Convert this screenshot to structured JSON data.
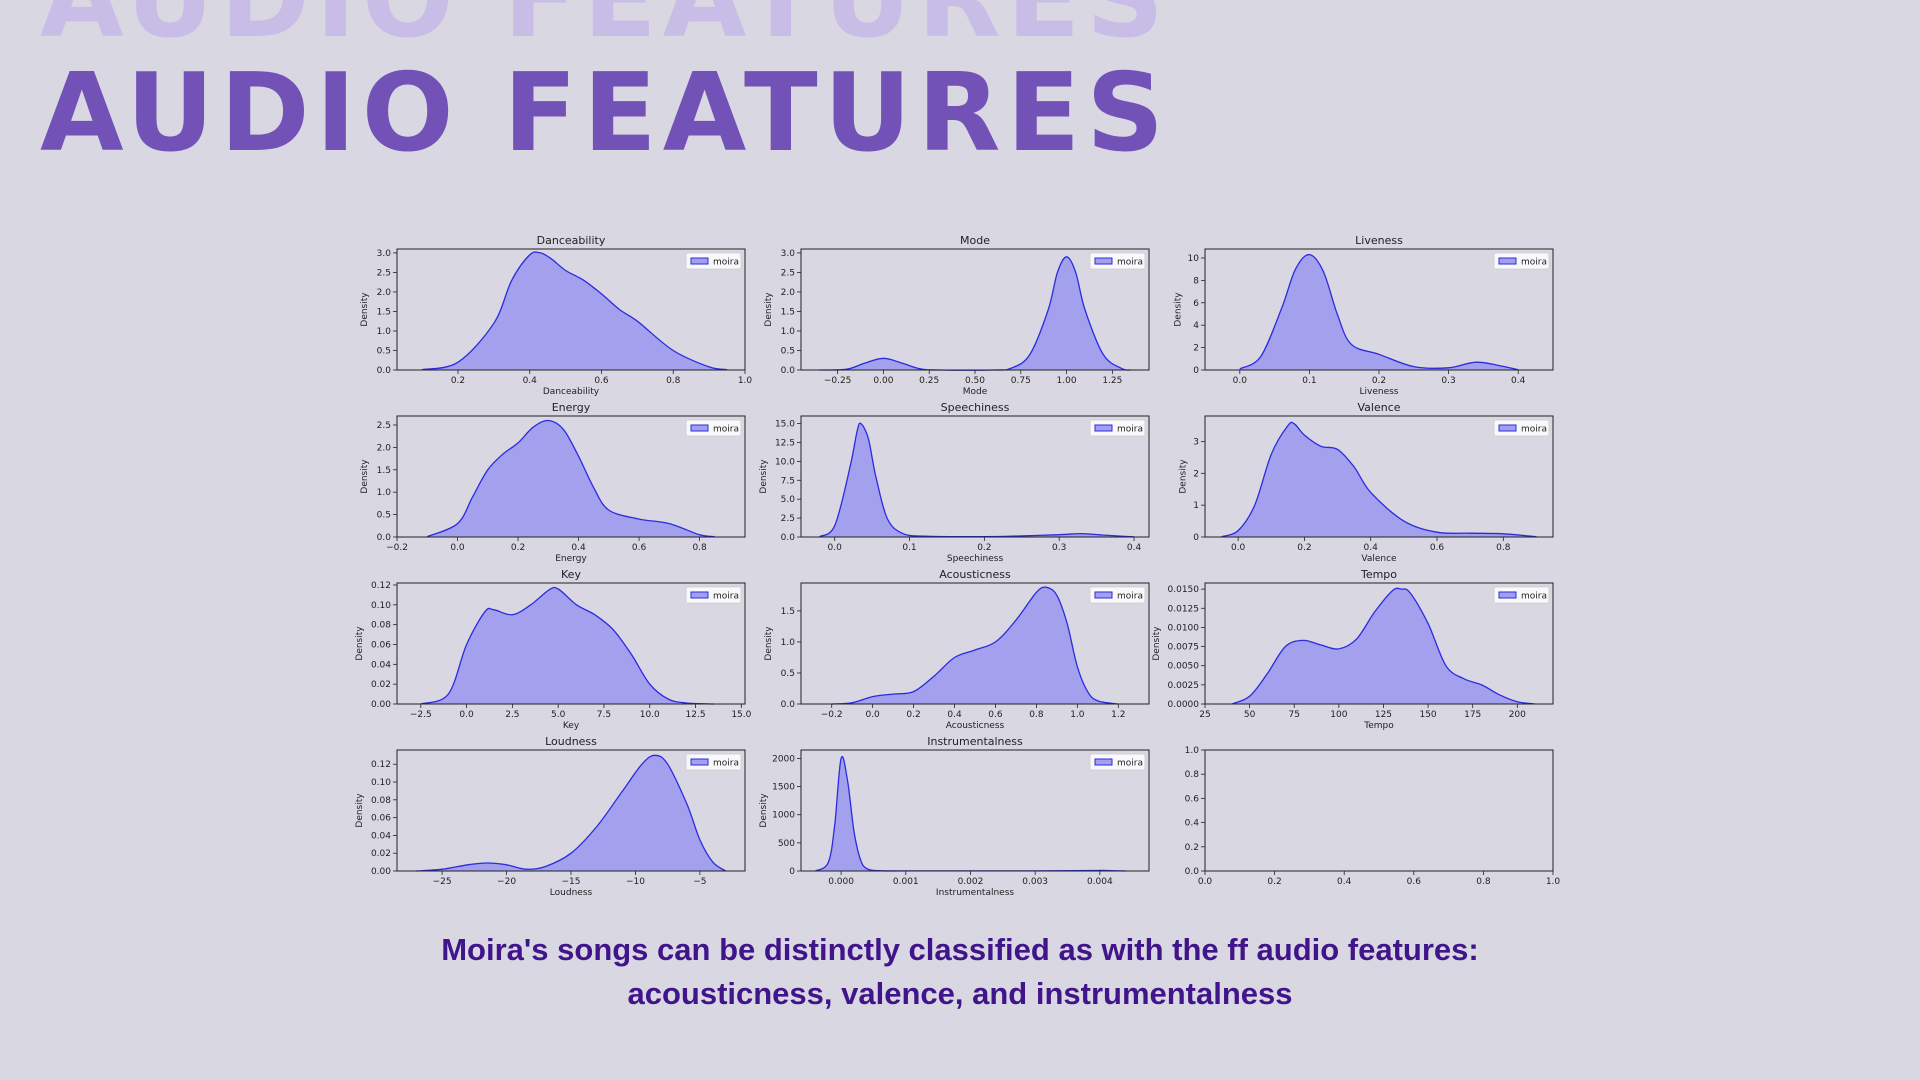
{
  "slide": {
    "title_ghost": "AUDIO FEATURES",
    "title": "AUDIO FEATURES",
    "caption_line1": "Moira's songs can be distinctly classified as with the ff audio features:",
    "caption_line2": "acousticness, valence, and instrumentalness",
    "colors": {
      "background": "#d8d7e2",
      "title": "#7352b8",
      "title_ghost": "#c8bde6",
      "caption": "#40148a",
      "line": "#2b2be0",
      "fill": "#a3a0ee"
    }
  },
  "chart_data": [
    {
      "type": "area",
      "title": "Danceability",
      "xlabel": "Danceability",
      "ylabel": "Density",
      "legend": [
        "moira"
      ],
      "xlim": [
        0.03,
        1.0
      ],
      "ylim": [
        0,
        3.1
      ],
      "xticks": [
        {
          "v": 0.2,
          "l": "0.2"
        },
        {
          "v": 0.4,
          "l": "0.4"
        },
        {
          "v": 0.6,
          "l": "0.6"
        },
        {
          "v": 0.8,
          "l": "0.8"
        },
        {
          "v": 1.0,
          "l": "1.0"
        }
      ],
      "yticks": [
        {
          "v": 0,
          "l": "0.0"
        },
        {
          "v": 0.5,
          "l": "0.5"
        },
        {
          "v": 1.0,
          "l": "1.0"
        },
        {
          "v": 1.5,
          "l": "1.5"
        },
        {
          "v": 2.0,
          "l": "2.0"
        },
        {
          "v": 2.5,
          "l": "2.5"
        },
        {
          "v": 3.0,
          "l": "3.0"
        }
      ],
      "x": [
        0.1,
        0.2,
        0.3,
        0.35,
        0.4,
        0.43,
        0.46,
        0.5,
        0.55,
        0.6,
        0.65,
        0.7,
        0.8,
        0.9,
        0.95
      ],
      "y": [
        0.01,
        0.2,
        1.2,
        2.3,
        2.95,
        3.0,
        2.85,
        2.55,
        2.3,
        1.95,
        1.55,
        1.25,
        0.5,
        0.08,
        0.01
      ]
    },
    {
      "type": "area",
      "title": "Mode",
      "xlabel": "Mode",
      "ylabel": "Density",
      "legend": [
        "moira"
      ],
      "xlim": [
        -0.45,
        1.45
      ],
      "ylim": [
        0,
        3.1
      ],
      "xticks": [
        {
          "v": -0.25,
          "l": "−0.25"
        },
        {
          "v": 0,
          "l": "0.00"
        },
        {
          "v": 0.25,
          "l": "0.25"
        },
        {
          "v": 0.5,
          "l": "0.50"
        },
        {
          "v": 0.75,
          "l": "0.75"
        },
        {
          "v": 1.0,
          "l": "1.00"
        },
        {
          "v": 1.25,
          "l": "1.25"
        }
      ],
      "yticks": [
        {
          "v": 0,
          "l": "0.0"
        },
        {
          "v": 0.5,
          "l": "0.5"
        },
        {
          "v": 1.0,
          "l": "1.0"
        },
        {
          "v": 1.5,
          "l": "1.5"
        },
        {
          "v": 2.0,
          "l": "2.0"
        },
        {
          "v": 2.5,
          "l": "2.5"
        },
        {
          "v": 3.0,
          "l": "3.0"
        }
      ],
      "x": [
        -0.35,
        -0.2,
        -0.1,
        0,
        0.1,
        0.2,
        0.3,
        0.6,
        0.7,
        0.8,
        0.9,
        0.95,
        1.0,
        1.05,
        1.1,
        1.2,
        1.3,
        1.35
      ],
      "y": [
        0,
        0.02,
        0.18,
        0.3,
        0.18,
        0.03,
        0,
        0,
        0.05,
        0.4,
        1.55,
        2.5,
        2.9,
        2.5,
        1.55,
        0.4,
        0.04,
        0
      ]
    },
    {
      "type": "area",
      "title": "Liveness",
      "xlabel": "Liveness",
      "ylabel": "Density",
      "legend": [
        "moira"
      ],
      "xlim": [
        -0.05,
        0.45
      ],
      "ylim": [
        0,
        10.8
      ],
      "xticks": [
        {
          "v": 0,
          "l": "0.0"
        },
        {
          "v": 0.1,
          "l": "0.1"
        },
        {
          "v": 0.2,
          "l": "0.2"
        },
        {
          "v": 0.3,
          "l": "0.3"
        },
        {
          "v": 0.4,
          "l": "0.4"
        }
      ],
      "yticks": [
        {
          "v": 0,
          "l": "0"
        },
        {
          "v": 2,
          "l": "2"
        },
        {
          "v": 4,
          "l": "4"
        },
        {
          "v": 6,
          "l": "6"
        },
        {
          "v": 8,
          "l": "8"
        },
        {
          "v": 10,
          "l": "10"
        }
      ],
      "x": [
        0.0,
        0.03,
        0.06,
        0.08,
        0.1,
        0.12,
        0.14,
        0.16,
        0.2,
        0.25,
        0.3,
        0.34,
        0.38,
        0.4
      ],
      "y": [
        0.1,
        1.2,
        5.5,
        9.0,
        10.3,
        8.8,
        5.0,
        2.3,
        1.4,
        0.3,
        0.2,
        0.7,
        0.3,
        0.02
      ]
    },
    {
      "type": "area",
      "title": "Energy",
      "xlabel": "Energy",
      "ylabel": "Density",
      "legend": [
        "moira"
      ],
      "xlim": [
        -0.2,
        0.95
      ],
      "ylim": [
        0,
        2.7
      ],
      "xticks": [
        {
          "v": -0.2,
          "l": "−0.2"
        },
        {
          "v": 0,
          "l": "0.0"
        },
        {
          "v": 0.2,
          "l": "0.2"
        },
        {
          "v": 0.4,
          "l": "0.4"
        },
        {
          "v": 0.6,
          "l": "0.6"
        },
        {
          "v": 0.8,
          "l": "0.8"
        }
      ],
      "yticks": [
        {
          "v": 0,
          "l": "0.0"
        },
        {
          "v": 0.5,
          "l": "0.5"
        },
        {
          "v": 1.0,
          "l": "1.0"
        },
        {
          "v": 1.5,
          "l": "1.5"
        },
        {
          "v": 2.0,
          "l": "2.0"
        },
        {
          "v": 2.5,
          "l": "2.5"
        }
      ],
      "x": [
        -0.1,
        0,
        0.05,
        0.1,
        0.15,
        0.2,
        0.25,
        0.3,
        0.35,
        0.4,
        0.45,
        0.5,
        0.6,
        0.7,
        0.8,
        0.85
      ],
      "y": [
        0.01,
        0.3,
        0.9,
        1.5,
        1.85,
        2.1,
        2.45,
        2.6,
        2.4,
        1.8,
        1.1,
        0.6,
        0.4,
        0.3,
        0.05,
        0.01
      ]
    },
    {
      "type": "area",
      "title": "Speechiness",
      "xlabel": "Speechiness",
      "ylabel": "Density",
      "legend": [
        "moira"
      ],
      "xlim": [
        -0.045,
        0.42
      ],
      "ylim": [
        0,
        16
      ],
      "xticks": [
        {
          "v": 0,
          "l": "0.0"
        },
        {
          "v": 0.1,
          "l": "0.1"
        },
        {
          "v": 0.2,
          "l": "0.2"
        },
        {
          "v": 0.3,
          "l": "0.3"
        },
        {
          "v": 0.4,
          "l": "0.4"
        }
      ],
      "yticks": [
        {
          "v": 0,
          "l": "0.0"
        },
        {
          "v": 2.5,
          "l": "2.5"
        },
        {
          "v": 5,
          "l": "5.0"
        },
        {
          "v": 7.5,
          "l": "7.5"
        },
        {
          "v": 10,
          "l": "10.0"
        },
        {
          "v": 12.5,
          "l": "12.5"
        },
        {
          "v": 15,
          "l": "15.0"
        }
      ],
      "x": [
        -0.02,
        0,
        0.02,
        0.03,
        0.035,
        0.045,
        0.055,
        0.07,
        0.09,
        0.12,
        0.2,
        0.25,
        0.3,
        0.33,
        0.36,
        0.4
      ],
      "y": [
        0.05,
        1.5,
        9.0,
        14.0,
        15.0,
        13.0,
        8.0,
        2.5,
        0.5,
        0.1,
        0.05,
        0.15,
        0.3,
        0.45,
        0.25,
        0.02
      ]
    },
    {
      "type": "area",
      "title": "Valence",
      "xlabel": "Valence",
      "ylabel": "Density",
      "legend": [
        "moira"
      ],
      "xlim": [
        -0.1,
        0.95
      ],
      "ylim": [
        0,
        3.8
      ],
      "xticks": [
        {
          "v": 0,
          "l": "0.0"
        },
        {
          "v": 0.2,
          "l": "0.2"
        },
        {
          "v": 0.4,
          "l": "0.4"
        },
        {
          "v": 0.6,
          "l": "0.6"
        },
        {
          "v": 0.8,
          "l": "0.8"
        }
      ],
      "yticks": [
        {
          "v": 0,
          "l": "0"
        },
        {
          "v": 1,
          "l": "1"
        },
        {
          "v": 2,
          "l": "2"
        },
        {
          "v": 3,
          "l": "3"
        }
      ],
      "x": [
        -0.05,
        0,
        0.05,
        0.1,
        0.15,
        0.17,
        0.2,
        0.25,
        0.3,
        0.35,
        0.4,
        0.5,
        0.6,
        0.7,
        0.8,
        0.9
      ],
      "y": [
        0.01,
        0.2,
        1.0,
        2.6,
        3.5,
        3.55,
        3.2,
        2.85,
        2.75,
        2.2,
        1.4,
        0.5,
        0.15,
        0.12,
        0.1,
        0.01
      ]
    },
    {
      "type": "area",
      "title": "Key",
      "xlabel": "Key",
      "ylabel": "Density",
      "legend": [
        "moira"
      ],
      "xlim": [
        -3.8,
        15.2
      ],
      "ylim": [
        0,
        0.122
      ],
      "xticks": [
        {
          "v": -2.5,
          "l": "−2.5"
        },
        {
          "v": 0,
          "l": "0.0"
        },
        {
          "v": 2.5,
          "l": "2.5"
        },
        {
          "v": 5,
          "l": "5.0"
        },
        {
          "v": 7.5,
          "l": "7.5"
        },
        {
          "v": 10,
          "l": "10.0"
        },
        {
          "v": 12.5,
          "l": "12.5"
        },
        {
          "v": 15,
          "l": "15.0"
        }
      ],
      "yticks": [
        {
          "v": 0,
          "l": "0.00"
        },
        {
          "v": 0.02,
          "l": "0.02"
        },
        {
          "v": 0.04,
          "l": "0.04"
        },
        {
          "v": 0.06,
          "l": "0.06"
        },
        {
          "v": 0.08,
          "l": "0.08"
        },
        {
          "v": 0.1,
          "l": "0.10"
        },
        {
          "v": 0.12,
          "l": "0.12"
        }
      ],
      "x": [
        -2.5,
        -1,
        0,
        1,
        1.5,
        2.5,
        3.5,
        4.5,
        5,
        6,
        7,
        8,
        9,
        10,
        11,
        12,
        13.5
      ],
      "y": [
        0,
        0.01,
        0.06,
        0.093,
        0.095,
        0.09,
        0.1,
        0.115,
        0.116,
        0.1,
        0.09,
        0.075,
        0.05,
        0.02,
        0.005,
        0.001,
        0
      ]
    },
    {
      "type": "area",
      "title": "Acousticness",
      "xlabel": "Acousticness",
      "ylabel": "Density",
      "legend": [
        "moira"
      ],
      "xlim": [
        -0.35,
        1.35
      ],
      "ylim": [
        0,
        1.95
      ],
      "xticks": [
        {
          "v": -0.2,
          "l": "−0.2"
        },
        {
          "v": 0,
          "l": "0.0"
        },
        {
          "v": 0.2,
          "l": "0.2"
        },
        {
          "v": 0.4,
          "l": "0.4"
        },
        {
          "v": 0.6,
          "l": "0.6"
        },
        {
          "v": 0.8,
          "l": "0.8"
        },
        {
          "v": 1.0,
          "l": "1.0"
        },
        {
          "v": 1.2,
          "l": "1.2"
        }
      ],
      "yticks": [
        {
          "v": 0,
          "l": "0.0"
        },
        {
          "v": 0.5,
          "l": "0.5"
        },
        {
          "v": 1.0,
          "l": "1.0"
        },
        {
          "v": 1.5,
          "l": "1.5"
        }
      ],
      "x": [
        -0.2,
        -0.1,
        0,
        0.1,
        0.2,
        0.3,
        0.4,
        0.5,
        0.6,
        0.7,
        0.8,
        0.85,
        0.9,
        0.95,
        1.0,
        1.05,
        1.1,
        1.2
      ],
      "y": [
        0,
        0.02,
        0.12,
        0.16,
        0.2,
        0.45,
        0.75,
        0.87,
        1.0,
        1.35,
        1.8,
        1.88,
        1.75,
        1.3,
        0.6,
        0.2,
        0.05,
        0
      ]
    },
    {
      "type": "area",
      "title": "Tempo",
      "xlabel": "Tempo",
      "ylabel": "Density",
      "legend": [
        "moira"
      ],
      "xlim": [
        25,
        220
      ],
      "ylim": [
        0,
        0.0158
      ],
      "xticks": [
        {
          "v": 25,
          "l": "25"
        },
        {
          "v": 50,
          "l": "50"
        },
        {
          "v": 75,
          "l": "75"
        },
        {
          "v": 100,
          "l": "100"
        },
        {
          "v": 125,
          "l": "125"
        },
        {
          "v": 150,
          "l": "150"
        },
        {
          "v": 175,
          "l": "175"
        },
        {
          "v": 200,
          "l": "200"
        }
      ],
      "yticks": [
        {
          "v": 0,
          "l": "0.0000"
        },
        {
          "v": 0.0025,
          "l": "0.0025"
        },
        {
          "v": 0.005,
          "l": "0.0050"
        },
        {
          "v": 0.0075,
          "l": "0.0075"
        },
        {
          "v": 0.01,
          "l": "0.0100"
        },
        {
          "v": 0.0125,
          "l": "0.0125"
        },
        {
          "v": 0.015,
          "l": "0.0150"
        }
      ],
      "x": [
        40,
        50,
        60,
        70,
        80,
        90,
        100,
        110,
        120,
        130,
        135,
        140,
        150,
        160,
        170,
        180,
        190,
        200,
        210
      ],
      "y": [
        0,
        0.001,
        0.004,
        0.0075,
        0.0083,
        0.0077,
        0.0072,
        0.0085,
        0.012,
        0.0148,
        0.015,
        0.0145,
        0.0105,
        0.005,
        0.0033,
        0.0025,
        0.0012,
        0.0003,
        0
      ]
    },
    {
      "type": "area",
      "title": "Loudness",
      "xlabel": "Loudness",
      "ylabel": "Density",
      "legend": [
        "moira"
      ],
      "xlim": [
        -28.5,
        -1.5
      ],
      "ylim": [
        0,
        0.136
      ],
      "xticks": [
        {
          "v": -25,
          "l": "−25"
        },
        {
          "v": -20,
          "l": "−20"
        },
        {
          "v": -15,
          "l": "−15"
        },
        {
          "v": -10,
          "l": "−10"
        },
        {
          "v": -5,
          "l": "−5"
        }
      ],
      "yticks": [
        {
          "v": 0,
          "l": "0.00"
        },
        {
          "v": 0.02,
          "l": "0.02"
        },
        {
          "v": 0.04,
          "l": "0.04"
        },
        {
          "v": 0.06,
          "l": "0.06"
        },
        {
          "v": 0.08,
          "l": "0.08"
        },
        {
          "v": 0.1,
          "l": "0.10"
        },
        {
          "v": 0.12,
          "l": "0.12"
        }
      ],
      "x": [
        -27,
        -25,
        -23,
        -21.5,
        -20,
        -18.5,
        -17,
        -15,
        -13,
        -11,
        -9.5,
        -8.5,
        -7.5,
        -6,
        -5,
        -4,
        -3
      ],
      "y": [
        0,
        0.002,
        0.007,
        0.009,
        0.007,
        0.002,
        0.005,
        0.02,
        0.05,
        0.09,
        0.12,
        0.13,
        0.12,
        0.075,
        0.035,
        0.01,
        0
      ]
    },
    {
      "type": "area",
      "title": "Instrumentalness",
      "xlabel": "Instrumentalness",
      "ylabel": "Density",
      "legend": [
        "moira"
      ],
      "xlim": [
        -0.00062,
        0.00476
      ],
      "ylim": [
        0,
        2150
      ],
      "xticks": [
        {
          "v": 0,
          "l": "0.000"
        },
        {
          "v": 0.001,
          "l": "0.001"
        },
        {
          "v": 0.002,
          "l": "0.002"
        },
        {
          "v": 0.003,
          "l": "0.003"
        },
        {
          "v": 0.004,
          "l": "0.004"
        }
      ],
      "yticks": [
        {
          "v": 0,
          "l": "0"
        },
        {
          "v": 500,
          "l": "500"
        },
        {
          "v": 1000,
          "l": "1000"
        },
        {
          "v": 1500,
          "l": "1500"
        },
        {
          "v": 2000,
          "l": "2000"
        }
      ],
      "x": [
        -0.0004,
        -0.0002,
        -0.0001,
        0,
        0.0001,
        0.0002,
        0.0003,
        0.0004,
        0.0006,
        0.001,
        0.003,
        0.0039,
        0.004,
        0.0041,
        0.0044
      ],
      "y": [
        0,
        150,
        800,
        2000,
        1600,
        700,
        200,
        40,
        5,
        2,
        2,
        8,
        10,
        8,
        0
      ]
    },
    {
      "type": "area",
      "title": "",
      "xlabel": "",
      "ylabel": "",
      "legend": [],
      "xlim": [
        0,
        1
      ],
      "ylim": [
        0,
        1
      ],
      "xticks": [
        {
          "v": 0,
          "l": "0.0"
        },
        {
          "v": 0.2,
          "l": "0.2"
        },
        {
          "v": 0.4,
          "l": "0.4"
        },
        {
          "v": 0.6,
          "l": "0.6"
        },
        {
          "v": 0.8,
          "l": "0.8"
        },
        {
          "v": 1.0,
          "l": "1.0"
        }
      ],
      "yticks": [
        {
          "v": 0,
          "l": "0.0"
        },
        {
          "v": 0.2,
          "l": "0.2"
        },
        {
          "v": 0.4,
          "l": "0.4"
        },
        {
          "v": 0.6,
          "l": "0.6"
        },
        {
          "v": 0.8,
          "l": "0.8"
        },
        {
          "v": 1.0,
          "l": "1.0"
        }
      ],
      "x": [],
      "y": []
    }
  ]
}
